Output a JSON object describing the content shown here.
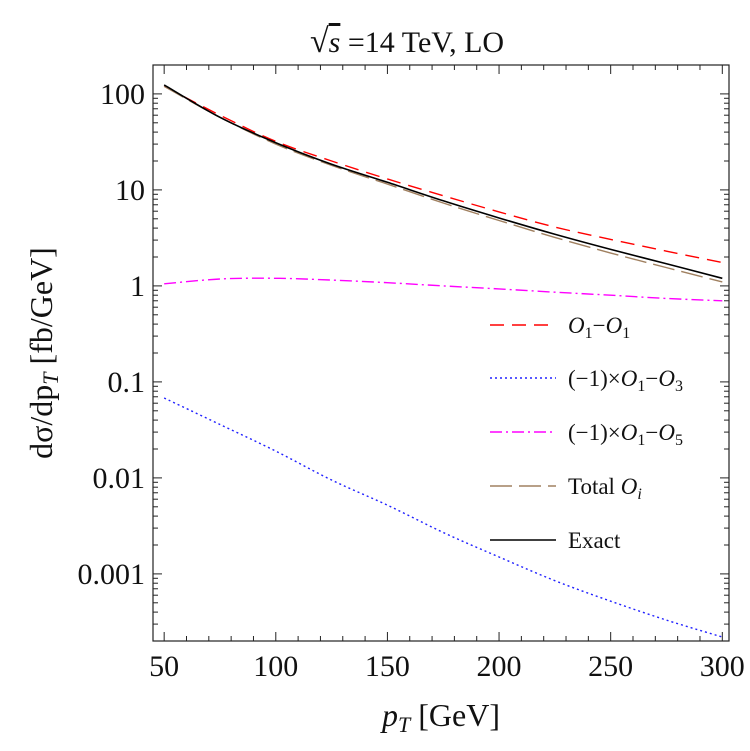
{
  "chart_data": {
    "type": "line",
    "title": "√s =14 TeV, LO",
    "title_parts": {
      "sqrt_symbol": "√",
      "sqrt_arg": "s",
      "rest": " =14 TeV, LO"
    },
    "xlabel": "p_T [GeV]",
    "xlabel_parts": {
      "var": "p",
      "sub": "T",
      "unit": " [GeV]"
    },
    "ylabel": "dσ/dp_T [fb/GeV]",
    "ylabel_parts": {
      "pre": "dσ/dp",
      "sub": "T",
      "unit": " [fb/GeV]"
    },
    "xlim": [
      45,
      303
    ],
    "ylim": [
      0.0002,
      200
    ],
    "yscale": "log",
    "x_ticks": [
      50,
      100,
      150,
      200,
      250,
      300
    ],
    "x_tick_labels": [
      "50",
      "100",
      "150",
      "200",
      "250",
      "300"
    ],
    "y_ticks": [
      0.001,
      0.01,
      0.1,
      1,
      10,
      100
    ],
    "y_tick_labels": [
      "0.001",
      "0.01",
      "0.1",
      "1",
      "10",
      "100"
    ],
    "legend_position": "right-center",
    "series": [
      {
        "name": "O1-O1",
        "legend_parts": [
          {
            "t": "O",
            "i": true
          },
          {
            "t": "1",
            "sub": true
          },
          {
            "t": "−"
          },
          {
            "t": "O",
            "i": true
          },
          {
            "t": "1",
            "sub": true
          }
        ],
        "color": "#ff0000",
        "dash": "14,8",
        "x": [
          50,
          75,
          100,
          125,
          150,
          175,
          200,
          225,
          250,
          275,
          300
        ],
        "y": [
          120,
          60,
          32,
          20,
          13,
          8.7,
          5.9,
          4.1,
          3.05,
          2.3,
          1.75
        ]
      },
      {
        "name": "(-1)xO1-O3",
        "legend_parts": [
          {
            "t": "(−1)×"
          },
          {
            "t": "O",
            "i": true
          },
          {
            "t": "1",
            "sub": true
          },
          {
            "t": "−"
          },
          {
            "t": "O",
            "i": true
          },
          {
            "t": "3",
            "sub": true
          }
        ],
        "color": "#2020ff",
        "dash": "2,3",
        "x": [
          50,
          75,
          100,
          125,
          150,
          175,
          200,
          225,
          250,
          275,
          300
        ],
        "y": [
          0.068,
          0.036,
          0.019,
          0.0095,
          0.0052,
          0.0027,
          0.0015,
          0.00085,
          0.00052,
          0.00033,
          0.00022
        ]
      },
      {
        "name": "(-1)xO1-O5",
        "legend_parts": [
          {
            "t": "(−1)×"
          },
          {
            "t": "O",
            "i": true
          },
          {
            "t": "1",
            "sub": true
          },
          {
            "t": "−"
          },
          {
            "t": "O",
            "i": true
          },
          {
            "t": "5",
            "sub": true
          }
        ],
        "color": "#ff00ff",
        "dash": "12,4,2,4",
        "x": [
          50,
          75,
          100,
          125,
          150,
          175,
          200,
          225,
          250,
          275,
          300
        ],
        "y": [
          1.05,
          1.18,
          1.2,
          1.15,
          1.08,
          1.0,
          0.93,
          0.86,
          0.8,
          0.74,
          0.7
        ]
      },
      {
        "name": "Total Oi",
        "legend_parts": [
          {
            "t": "Total "
          },
          {
            "t": "O",
            "i": true
          },
          {
            "t": "i",
            "sub": true,
            "i": true
          }
        ],
        "color": "#a08060",
        "dash": "22,7",
        "x": [
          50,
          75,
          100,
          125,
          150,
          175,
          200,
          225,
          250,
          275,
          300
        ],
        "y": [
          120,
          57,
          30,
          18,
          11.5,
          7.3,
          4.8,
          3.2,
          2.2,
          1.55,
          1.1
        ]
      },
      {
        "name": "Exact",
        "legend_parts": [
          {
            "t": "Exact"
          }
        ],
        "color": "#000000",
        "dash": "",
        "x": [
          50,
          75,
          100,
          125,
          150,
          175,
          200,
          225,
          250,
          275,
          300
        ],
        "y": [
          124,
          57,
          31,
          18.5,
          12,
          7.7,
          5.1,
          3.45,
          2.4,
          1.7,
          1.2
        ]
      }
    ]
  }
}
